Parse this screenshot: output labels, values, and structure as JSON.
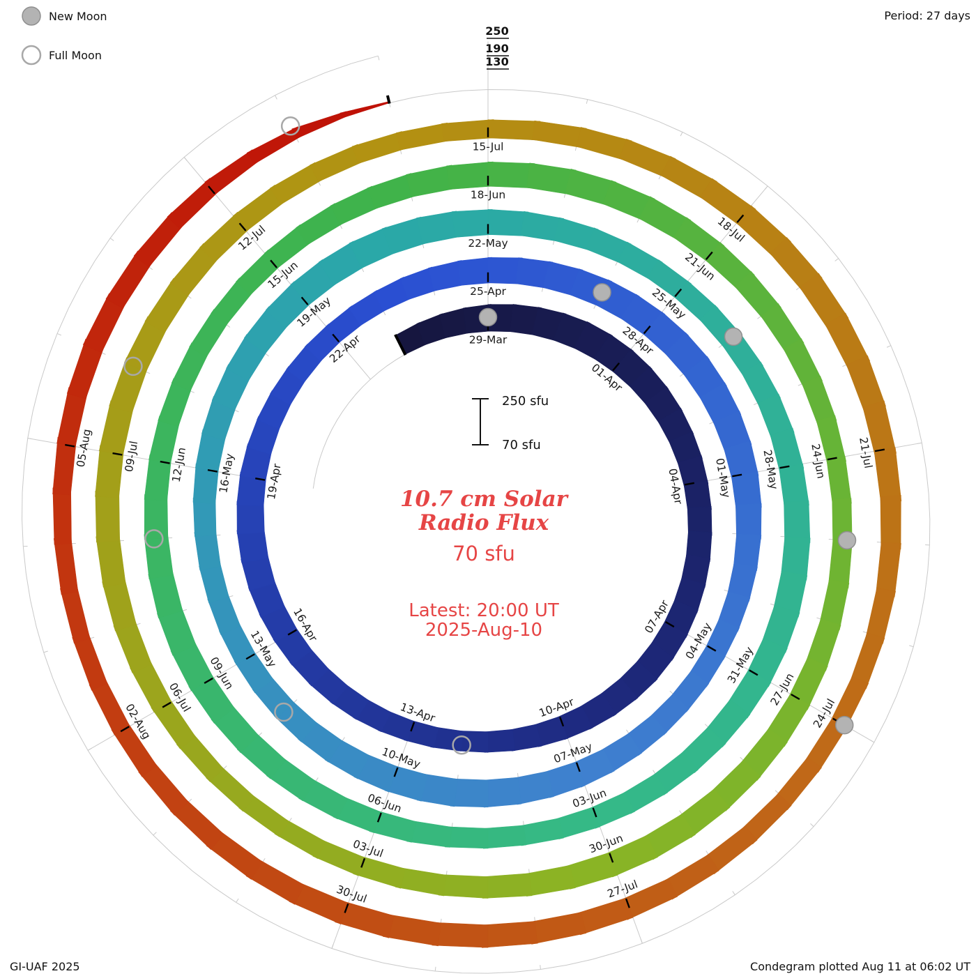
{
  "legend": {
    "new_moon_label": "New Moon",
    "full_moon_label": "Full Moon"
  },
  "header": {
    "period_label": "Period: 27 days"
  },
  "footer": {
    "credit": "GI-UAF 2025",
    "plotted": "Condegram plotted Aug 11 at 06:02 UT"
  },
  "center": {
    "title_line1": "10.7 cm Solar",
    "title_line2": "Radio Flux",
    "current_value": "70 sfu",
    "latest_line1": "Latest: 20:00 UT",
    "latest_line2": "2025-Aug-10",
    "scale_top": "250 sfu",
    "scale_bottom": "70 sfu"
  },
  "radial_axis": {
    "labels": [
      "250",
      "190",
      "130"
    ]
  },
  "chart_data": {
    "type": "line",
    "subtype": "spiral-condegram",
    "title": "10.7 cm Solar Radio Flux",
    "units": "sfu",
    "period_days": 27,
    "start_date": "2025-03-27",
    "value_range": [
      70,
      250
    ],
    "radial_tick_values": [
      130,
      190,
      250
    ],
    "latest_value_sfu": 70,
    "latest_time": "20:00 UT 2025-Aug-10",
    "label_step_days": 3,
    "first_label_day_index": 2,
    "date_labels": [
      "29-Mar",
      "01-Apr",
      "04-Apr",
      "07-Apr",
      "10-Apr",
      "13-Apr",
      "16-Apr",
      "19-Apr",
      "22-Apr",
      "25-Apr",
      "28-Apr",
      "01-May",
      "04-May",
      "07-May",
      "10-May",
      "13-May",
      "16-May",
      "19-May",
      "22-May",
      "25-May",
      "28-May",
      "31-May",
      "03-Jun",
      "06-Jun",
      "09-Jun",
      "12-Jun",
      "15-Jun",
      "18-Jun",
      "21-Jun",
      "24-Jun",
      "27-Jun",
      "30-Jun",
      "03-Jul",
      "06-Jul",
      "09-Jul",
      "12-Jul",
      "15-Jul",
      "18-Jul",
      "21-Jul",
      "24-Jul",
      "27-Jul",
      "30-Jul",
      "02-Aug",
      "05-Aug"
    ],
    "daily_flux": [
      150,
      160,
      170,
      175,
      180,
      178,
      172,
      165,
      160,
      158,
      162,
      168,
      170,
      165,
      158,
      150,
      145,
      148,
      155,
      160,
      165,
      170,
      172,
      168,
      160,
      152,
      148,
      150,
      158,
      165,
      170,
      175,
      178,
      180,
      176,
      170,
      162,
      155,
      150,
      152,
      158,
      165,
      170,
      173,
      170,
      165,
      158,
      152,
      148,
      150,
      156,
      162,
      168,
      172,
      174,
      170,
      164,
      158,
      152,
      148,
      150,
      155,
      160,
      165,
      168,
      166,
      160,
      154,
      148,
      144,
      146,
      152,
      158,
      163,
      166,
      164,
      158,
      152,
      146,
      142,
      144,
      150,
      156,
      161,
      164,
      162,
      156,
      150,
      144,
      140,
      142,
      148,
      154,
      159,
      162,
      160,
      154,
      148,
      142,
      138,
      140,
      146,
      152,
      157,
      160,
      158,
      152,
      146,
      140,
      136,
      138,
      144,
      150,
      155,
      158,
      156,
      150,
      144,
      138,
      134,
      136,
      142,
      148,
      153,
      156,
      154,
      148,
      142,
      136,
      132,
      134,
      140,
      145,
      140,
      130,
      110,
      70
    ],
    "new_moon_day_indices": [
      2,
      31,
      60,
      90,
      119
    ],
    "full_moon_day_indices": [
      16,
      46,
      76,
      105,
      135
    ],
    "colors": {
      "annotation_red": "#e64545",
      "grid_gray": "#c9c9c9",
      "new_moon_fill": "#b3b3b3",
      "new_moon_stroke": "#8f8f8f",
      "full_moon_stroke": "#a8a8a8",
      "gradient_stops": [
        [
          0.0,
          "#16163e"
        ],
        [
          0.1,
          "#1e2a80"
        ],
        [
          0.2,
          "#2a4fd2"
        ],
        [
          0.3,
          "#3f80cf"
        ],
        [
          0.4,
          "#2aa8a8"
        ],
        [
          0.5,
          "#35b987"
        ],
        [
          0.6,
          "#3fb34a"
        ],
        [
          0.7,
          "#8ab425"
        ],
        [
          0.8,
          "#b29212"
        ],
        [
          0.88,
          "#c06818"
        ],
        [
          0.95,
          "#c23810"
        ],
        [
          1.0,
          "#bf0f06"
        ]
      ]
    },
    "legend_position": "top-left",
    "grid": true
  }
}
